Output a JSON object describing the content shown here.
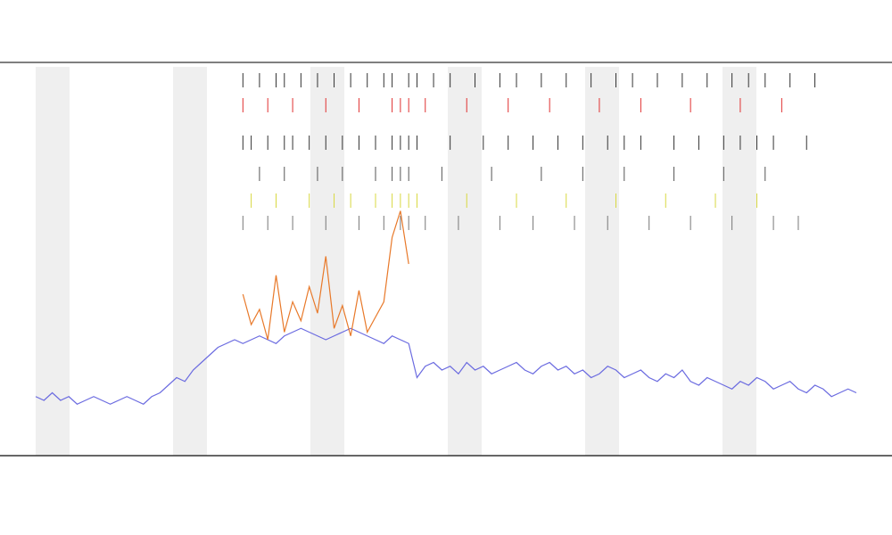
{
  "chart_data": {
    "type": "line",
    "x": [
      0,
      1,
      2,
      3,
      4,
      5,
      6,
      7,
      8,
      9,
      10,
      11,
      12,
      13,
      14,
      15,
      16,
      17,
      18,
      19,
      20,
      21,
      22,
      23,
      24,
      25,
      26,
      27,
      28,
      29,
      30,
      31,
      32,
      33,
      34,
      35,
      36,
      37,
      38,
      39,
      40,
      41,
      42,
      43,
      44,
      45,
      46,
      47,
      48,
      49,
      50,
      51,
      52,
      53,
      54,
      55,
      56,
      57,
      58,
      59,
      60,
      61,
      62,
      63,
      64,
      65,
      66,
      67,
      68,
      69,
      70,
      71,
      72,
      73,
      74,
      75,
      76,
      77,
      78,
      79,
      80,
      81,
      82,
      83,
      84,
      85,
      86,
      87,
      88,
      89,
      90,
      91,
      92,
      93,
      94,
      95,
      96,
      97,
      98,
      99
    ],
    "xlim": [
      0,
      99
    ],
    "ylim": [
      0,
      100
    ],
    "series": [
      {
        "color": "#6b6be0",
        "values": [
          13,
          12,
          14,
          12,
          13,
          11,
          12,
          13,
          12,
          11,
          12,
          13,
          12,
          11,
          13,
          14,
          16,
          18,
          17,
          20,
          22,
          24,
          26,
          27,
          28,
          27,
          28,
          29,
          28,
          27,
          29,
          30,
          31,
          30,
          29,
          28,
          29,
          30,
          31,
          30,
          29,
          28,
          27,
          29,
          28,
          27,
          18,
          21,
          22,
          20,
          21,
          19,
          22,
          20,
          21,
          19,
          20,
          21,
          22,
          20,
          19,
          21,
          22,
          20,
          21,
          19,
          20,
          18,
          19,
          21,
          20,
          18,
          19,
          20,
          18,
          17,
          19,
          18,
          20,
          17,
          16,
          18,
          17,
          16,
          15,
          17,
          16,
          18,
          17,
          15,
          16,
          17,
          15,
          14,
          16,
          15,
          13,
          14,
          15,
          14
        ]
      },
      {
        "color": "#e8792a",
        "values": [
          null,
          null,
          null,
          null,
          null,
          null,
          null,
          null,
          null,
          null,
          null,
          null,
          null,
          null,
          null,
          null,
          null,
          null,
          null,
          null,
          null,
          null,
          null,
          null,
          null,
          40,
          32,
          36,
          28,
          45,
          30,
          38,
          33,
          42,
          35,
          50,
          31,
          37,
          29,
          41,
          30,
          34,
          38,
          55,
          62,
          48,
          null,
          null,
          null,
          null,
          null,
          null,
          null,
          null,
          null,
          null,
          null,
          null,
          null,
          null,
          null,
          null,
          null,
          null,
          null,
          null,
          null,
          null,
          null,
          null,
          null,
          null,
          null,
          null,
          null,
          null,
          null,
          null,
          null,
          null,
          null,
          null,
          null,
          null,
          null,
          null,
          null,
          null,
          null,
          null,
          null,
          null,
          null,
          null,
          null,
          null,
          null,
          null,
          null,
          null
        ]
      }
    ],
    "events": [
      {
        "color": "#333333",
        "x": [
          25,
          27,
          29,
          30,
          32,
          34,
          36,
          38,
          40,
          42,
          43,
          45,
          46,
          48,
          50,
          53,
          56,
          58,
          61,
          64,
          67,
          70,
          72,
          75,
          78,
          81,
          84,
          86,
          88,
          91,
          94
        ]
      },
      {
        "color": "#e03030",
        "x": [
          25,
          28,
          31,
          35,
          39,
          43,
          44,
          45,
          47,
          52,
          57,
          62,
          68,
          73,
          79,
          85,
          90
        ]
      },
      {
        "color": "#333333",
        "x": [
          25,
          26,
          28,
          30,
          31,
          33,
          35,
          37,
          39,
          41,
          43,
          44,
          45,
          46,
          50,
          54,
          57,
          60,
          63,
          66,
          69,
          71,
          73,
          77,
          80,
          83,
          85,
          87,
          89,
          93
        ]
      },
      {
        "color": "#555555",
        "x": [
          27,
          30,
          34,
          37,
          41,
          43,
          44,
          45,
          49,
          55,
          61,
          66,
          71,
          77,
          83,
          88
        ]
      },
      {
        "color": "#d8d840",
        "x": [
          26,
          29,
          33,
          36,
          38,
          41,
          43,
          44,
          45,
          46,
          52,
          58,
          64,
          70,
          76,
          82,
          87
        ]
      },
      {
        "color": "#777777",
        "x": [
          25,
          28,
          31,
          35,
          39,
          42,
          44,
          45,
          47,
          51,
          56,
          60,
          65,
          69,
          74,
          79,
          84,
          89,
          92
        ]
      }
    ]
  }
}
